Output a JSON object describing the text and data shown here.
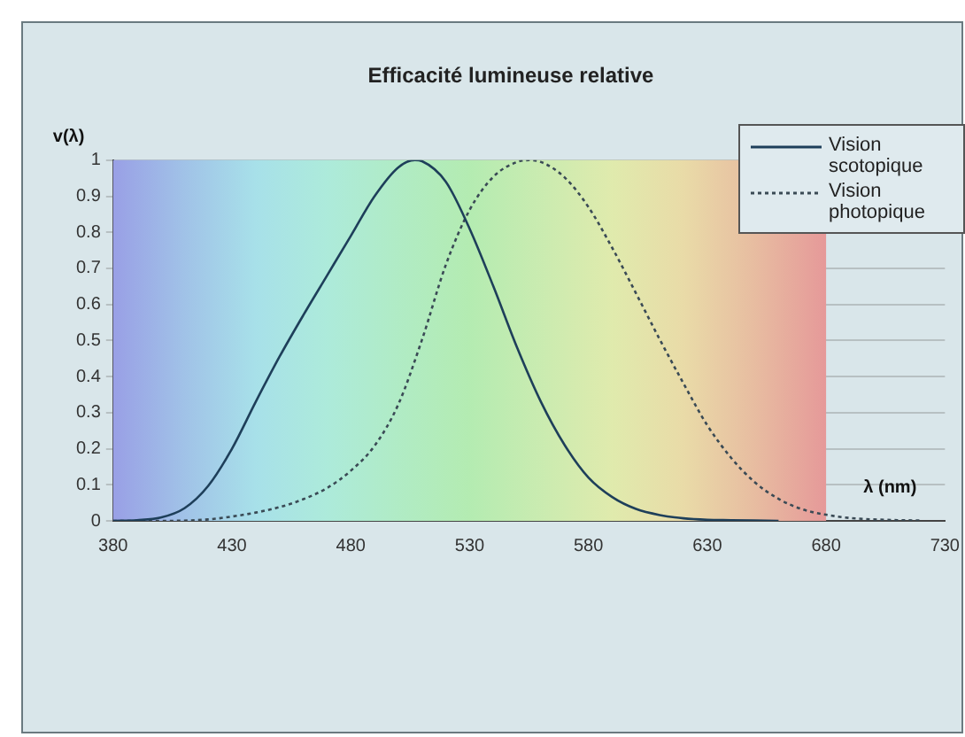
{
  "chart_data": {
    "type": "line",
    "title": "Efficacité lumineuse relative",
    "xlabel": "λ (nm)",
    "ylabel": "v(λ)",
    "xlim": [
      380,
      730
    ],
    "xticks": [
      380,
      430,
      480,
      530,
      580,
      630,
      680,
      730
    ],
    "ylim": [
      0,
      1
    ],
    "yticks": [
      0,
      0.1,
      0.2,
      0.3,
      0.4,
      0.5,
      0.6,
      0.7,
      0.8,
      0.9,
      1
    ],
    "grid": "y",
    "legend": "top right",
    "marker": "none",
    "bands": [
      {
        "axis": "x",
        "from": 380,
        "to": 680,
        "label": null
      }
    ],
    "series": [
      {
        "name": "Vision scotopique",
        "color": "#1e3f5a",
        "line_style": "solid",
        "x": [
          380,
          390,
          400,
          410,
          420,
          430,
          440,
          450,
          460,
          470,
          480,
          490,
          500,
          507,
          510,
          520,
          530,
          540,
          550,
          560,
          570,
          580,
          590,
          600,
          610,
          620,
          630,
          640,
          650,
          660
        ],
        "values": [
          0.0,
          0.002,
          0.009,
          0.035,
          0.097,
          0.2,
          0.33,
          0.455,
          0.57,
          0.68,
          0.79,
          0.9,
          0.98,
          1.0,
          0.997,
          0.94,
          0.81,
          0.65,
          0.48,
          0.33,
          0.21,
          0.12,
          0.066,
          0.033,
          0.016,
          0.007,
          0.003,
          0.002,
          0.001,
          0.0
        ]
      },
      {
        "name": "Vision photopique",
        "color": "#3a4a55",
        "line_style": "dotted",
        "x": [
          380,
          400,
          420,
          430,
          440,
          450,
          460,
          470,
          480,
          490,
          500,
          510,
          520,
          530,
          540,
          550,
          555,
          560,
          570,
          580,
          590,
          600,
          610,
          620,
          630,
          640,
          650,
          660,
          670,
          680,
          690,
          700,
          710,
          720
        ],
        "values": [
          0.0,
          0.0,
          0.004,
          0.012,
          0.023,
          0.038,
          0.06,
          0.091,
          0.139,
          0.208,
          0.323,
          0.503,
          0.71,
          0.862,
          0.954,
          0.995,
          1.0,
          0.995,
          0.952,
          0.87,
          0.757,
          0.631,
          0.503,
          0.381,
          0.265,
          0.175,
          0.107,
          0.061,
          0.032,
          0.017,
          0.008,
          0.004,
          0.002,
          0.001
        ]
      }
    ]
  }
}
